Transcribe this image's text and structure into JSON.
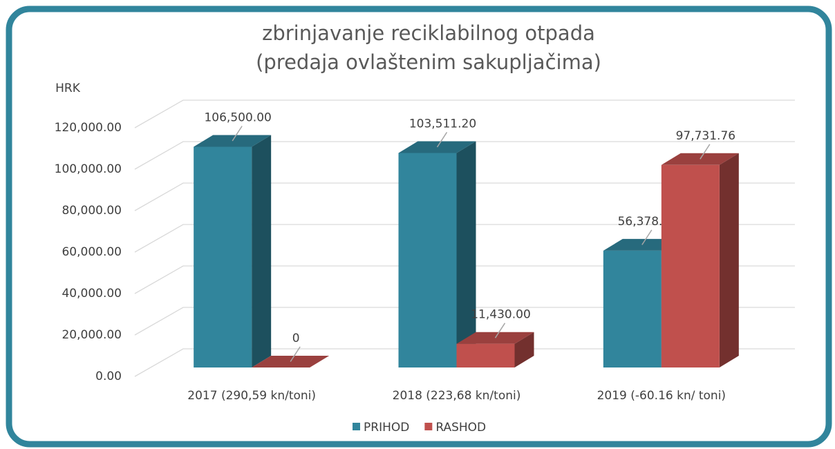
{
  "chart_data": {
    "type": "bar3d",
    "title": [
      "zbrinjavanje reciklabilnog otpada",
      "(predaja ovlaštenim sakupljačima)"
    ],
    "y_label": "HRK",
    "categories": [
      "2017 (290,59 kn/toni)",
      "2018 (223,68 kn/toni)",
      "2019 (-60.16 kn/ toni)"
    ],
    "series": [
      {
        "name": "PRIHOD",
        "color": "#31859c",
        "values": [
          106500,
          103511.2,
          56378
        ],
        "value_labels": [
          "106,500.00",
          "103,511.20",
          "56,378.00"
        ]
      },
      {
        "name": "RASHOD",
        "color": "#c0504d",
        "values": [
          0,
          11430,
          97731.76
        ],
        "value_labels": [
          "0",
          "11,430.00",
          "97,731.76"
        ]
      }
    ],
    "ylim": [
      0,
      120000
    ],
    "yticks": [
      {
        "value": 0,
        "label": "0.00"
      },
      {
        "value": 20000,
        "label": "20,000.00"
      },
      {
        "value": 40000,
        "label": "40,000.00"
      },
      {
        "value": 60000,
        "label": "60,000.00"
      },
      {
        "value": 80000,
        "label": "80,000.00"
      },
      {
        "value": 100000,
        "label": "100,000.00"
      },
      {
        "value": 120000,
        "label": "120,000.00"
      }
    ],
    "grid": true,
    "legend": "bottom"
  }
}
